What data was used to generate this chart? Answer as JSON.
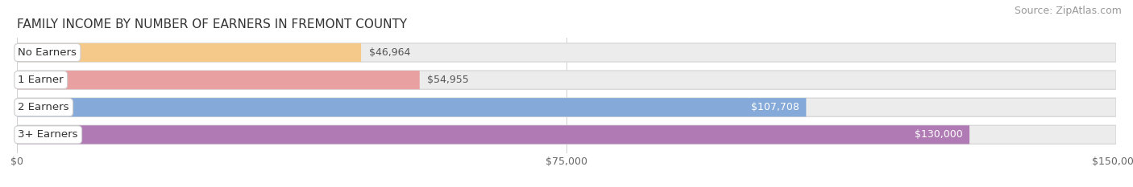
{
  "title": "FAMILY INCOME BY NUMBER OF EARNERS IN FREMONT COUNTY",
  "source": "Source: ZipAtlas.com",
  "categories": [
    "No Earners",
    "1 Earner",
    "2 Earners",
    "3+ Earners"
  ],
  "values": [
    46964,
    54955,
    107708,
    130000
  ],
  "bar_colors": [
    "#f5c98a",
    "#e8a0a0",
    "#85a9d8",
    "#b07ab5"
  ],
  "label_colors": [
    "#555555",
    "#555555",
    "#ffffff",
    "#ffffff"
  ],
  "value_label_outside_color": "#555555",
  "xmax": 150000,
  "xticks": [
    0,
    75000,
    150000
  ],
  "xtick_labels": [
    "$0",
    "$75,000",
    "$150,000"
  ],
  "value_labels": [
    "$46,964",
    "$54,955",
    "$107,708",
    "$130,000"
  ],
  "background_color": "#ffffff",
  "bar_track_color": "#ececec",
  "bar_track_border": "#d8d8d8",
  "title_fontsize": 11,
  "source_fontsize": 9,
  "bar_label_fontsize": 9.5,
  "value_label_fontsize": 9,
  "tick_fontsize": 9,
  "value_inside_threshold": 0.55
}
